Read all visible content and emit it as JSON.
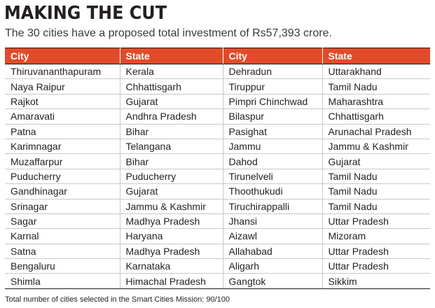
{
  "header": {
    "title": "MAKING THE CUT",
    "subtitle": "The 30 cities have a proposed total investment of Rs57,393 crore."
  },
  "table": {
    "columns": [
      "City",
      "State",
      "City",
      "State"
    ],
    "rows": [
      [
        "Thiruvananthapuram",
        "Kerala",
        "Dehradun",
        "Uttarakhand"
      ],
      [
        "Naya Raipur",
        "Chhattisgarh",
        "Tiruppur",
        "Tamil Nadu"
      ],
      [
        "Rajkot",
        "Gujarat",
        "Pimpri Chinchwad",
        "Maharashtra"
      ],
      [
        "Amaravati",
        "Andhra Pradesh",
        "Bilaspur",
        "Chhattisgarh"
      ],
      [
        "Patna",
        "Bihar",
        "Pasighat",
        "Arunachal Pradesh"
      ],
      [
        "Karimnagar",
        "Telangana",
        "Jammu",
        "Jammu & Kashmir"
      ],
      [
        "Muzaffarpur",
        "Bihar",
        "Dahod",
        "Gujarat"
      ],
      [
        "Puducherry",
        "Puducherry",
        "Tirunelveli",
        "Tamil Nadu"
      ],
      [
        "Gandhinagar",
        "Gujarat",
        "Thoothukudi",
        "Tamil Nadu"
      ],
      [
        "Srinagar",
        "Jammu & Kashmir",
        "Tiruchirappalli",
        "Tamil Nadu"
      ],
      [
        "Sagar",
        "Madhya Pradesh",
        "Jhansi",
        "Uttar Pradesh"
      ],
      [
        "Karnal",
        "Haryana",
        "Aizawl",
        "Mizoram"
      ],
      [
        "Satna",
        "Madhya Pradesh",
        "Allahabad",
        "Uttar Pradesh"
      ],
      [
        "Bengaluru",
        "Karnataka",
        "Aligarh",
        "Uttar Pradesh"
      ],
      [
        "Shimla",
        "Himachal Pradesh",
        "Gangtok",
        "Sikkim"
      ]
    ]
  },
  "footnote": "Total number of cities selected in the Smart Cities Mission: 90/100",
  "colors": {
    "header_bg": "#e24b2a",
    "header_text": "#ffffff",
    "text": "#231f20"
  }
}
